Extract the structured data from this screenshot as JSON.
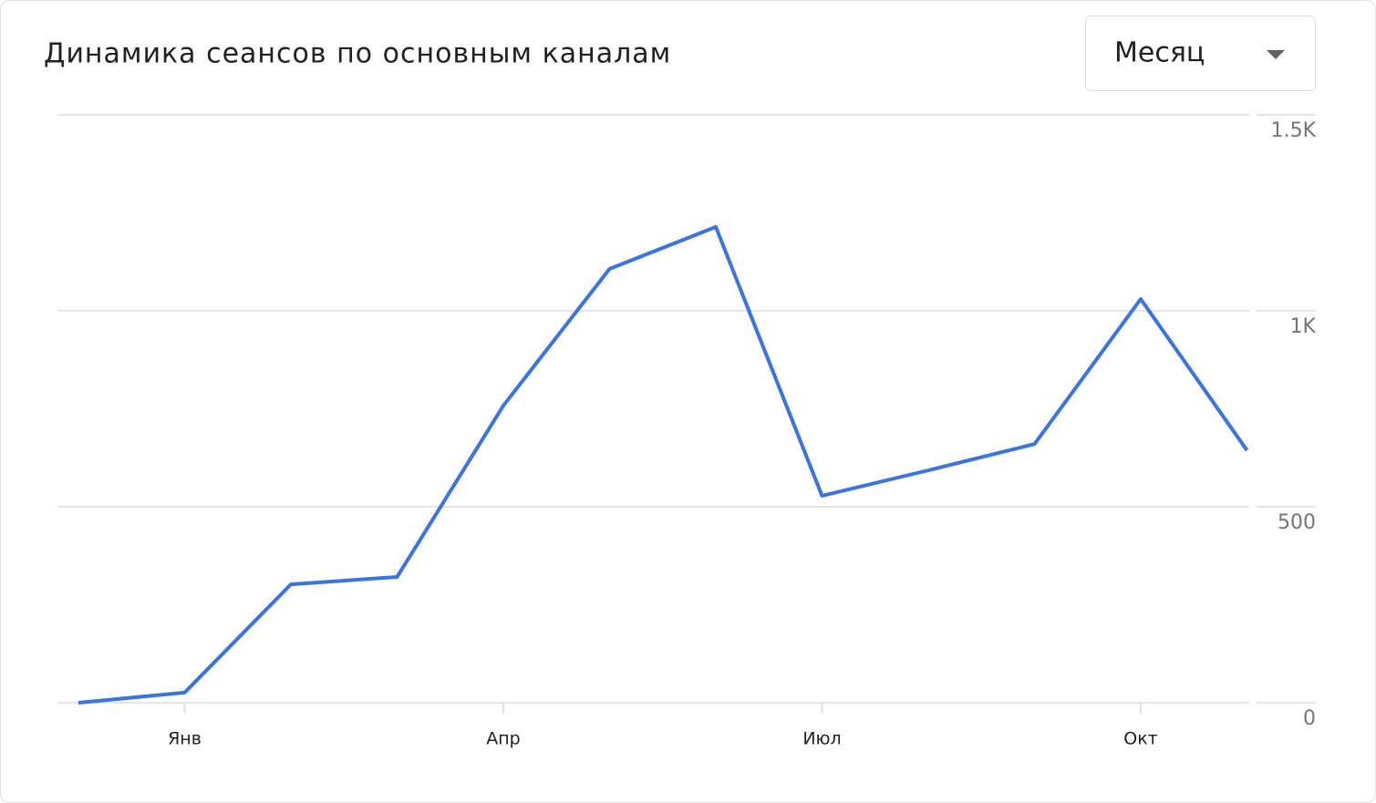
{
  "chart_data": {
    "type": "line",
    "title": "Динамика сеансов по основным каналам",
    "categories": [
      null,
      "Янв",
      null,
      null,
      "Апр",
      null,
      null,
      "Июл",
      null,
      null,
      "Окт",
      null
    ],
    "series": [
      {
        "color": "#3b73df",
        "values": [
          0,
          26,
          302,
          321,
          758,
          1107,
          1214,
          528,
          593,
          660,
          1030,
          644
        ]
      }
    ],
    "ylim": [
      0,
      1500
    ],
    "yticks": [
      0,
      500,
      {
        "value": 1000,
        "label": "1K"
      },
      {
        "value": 1500,
        "label": "1.5K"
      }
    ],
    "grid": true,
    "y_axis_side": "right"
  },
  "controls": {
    "period": "Месяц"
  }
}
